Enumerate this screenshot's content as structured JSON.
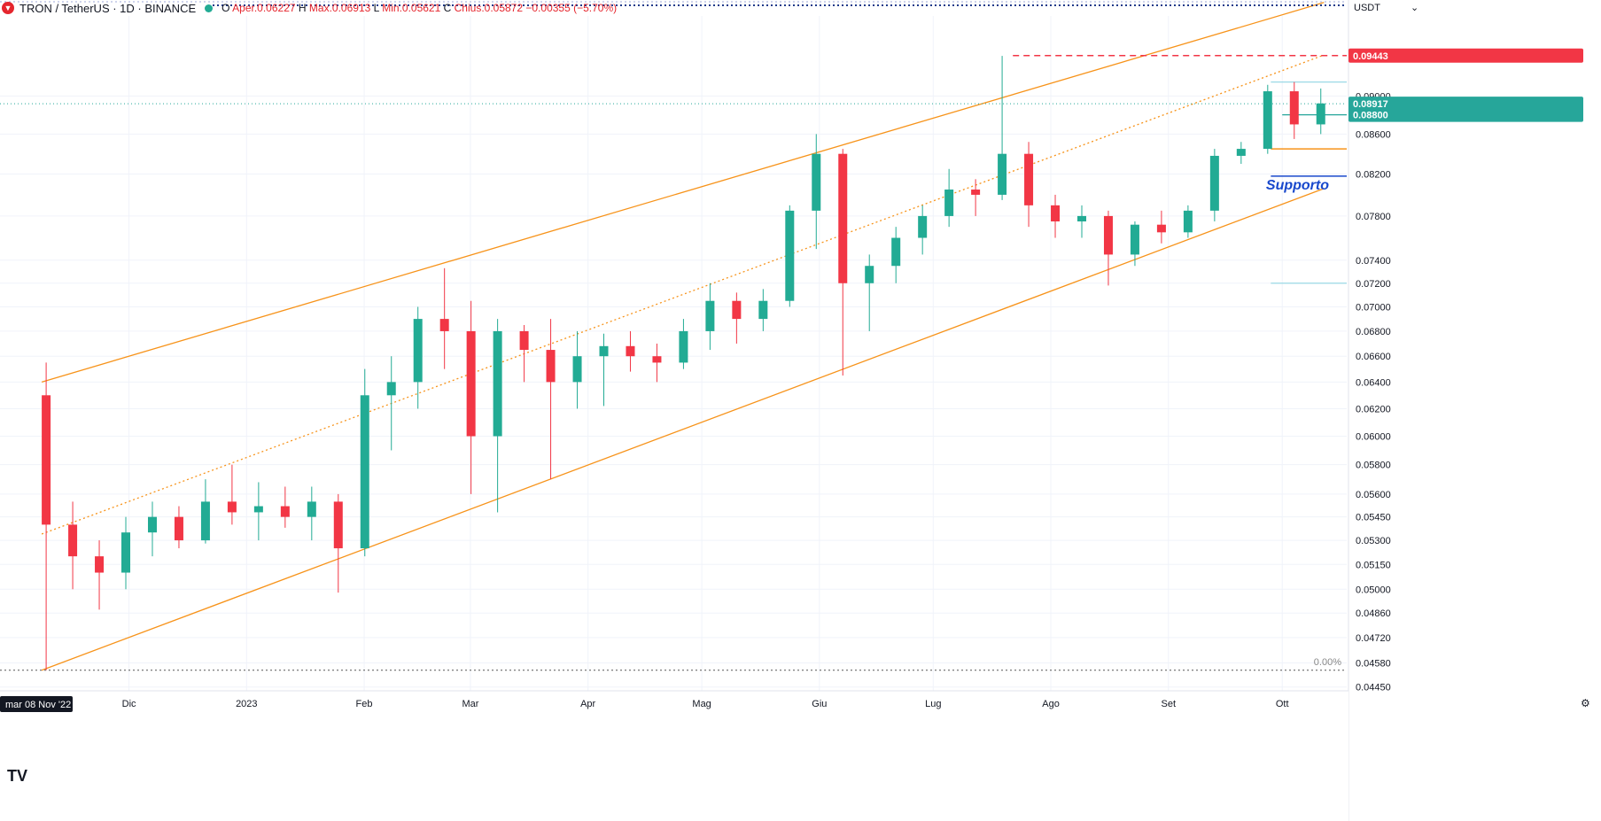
{
  "header": {
    "symbol": "TRON / TetherUS · 1D · BINANCE",
    "ohlc_label_o": "O",
    "open": "Aper.0.06227",
    "ohlc_label_h": "H",
    "high": "Max.0.06913",
    "ohlc_label_l": "L",
    "low": "Min.0.05621",
    "ohlc_label_c": "C",
    "close": "Chius.0.05872",
    "change": "−0.00355 (−5.70%)"
  },
  "currency": "USDT",
  "date_badge": "mar 08 Nov '22",
  "logo_text": "TV",
  "annotation": "Supporto",
  "fib_label": "0.00%",
  "colors": {
    "up": "#22ab94",
    "down": "#f23645",
    "channel": "#f7931a",
    "support": "#1848cc",
    "resistance": "#f23645",
    "price_line": "#26a69a"
  },
  "chart_data": {
    "type": "candlestick",
    "title": "",
    "xlabel": "",
    "ylabel": "",
    "x_ticks": [
      "Dic",
      "2023",
      "Feb",
      "Mar",
      "Apr",
      "Mag",
      "Giu",
      "Lug",
      "Ago",
      "Set",
      "Ott"
    ],
    "y_ticks": [
      "0.09000",
      "0.08600",
      "0.08200",
      "0.07800",
      "0.07400",
      "0.07200",
      "0.07000",
      "0.06800",
      "0.06600",
      "0.06400",
      "0.06200",
      "0.06000",
      "0.05800",
      "0.05600",
      "0.05450",
      "0.05300",
      "0.05150",
      "0.05000",
      "0.04860",
      "0.04720",
      "0.04580",
      "0.04450"
    ],
    "y_scale": "log",
    "ylim": [
      0.0443,
      0.099
    ],
    "price_labels": {
      "high_mark": "0.09443",
      "last_price": "0.08917",
      "level": "0.08800"
    },
    "levels": {
      "resistance": 0.09443,
      "last_price": 0.08917,
      "level": 0.088,
      "orange_level": 0.0845,
      "support": 0.0818,
      "low_mark": 0.0454
    },
    "channel": {
      "start": "2022-11-08",
      "end": "2023-10-12",
      "upper": [
        0.064,
        0.1006
      ],
      "middle": [
        0.0534,
        0.0945
      ],
      "lower": [
        0.0454,
        0.0806
      ]
    },
    "candles": [
      [
        "2022-11-08",
        0.063,
        0.0655,
        0.0454,
        0.054
      ],
      [
        "2022-11-15",
        0.054,
        0.0555,
        0.05,
        0.052
      ],
      [
        "2022-11-22",
        0.052,
        0.053,
        0.0488,
        0.051
      ],
      [
        "2022-11-29",
        0.051,
        0.0545,
        0.05,
        0.0535
      ],
      [
        "2022-12-06",
        0.0535,
        0.0555,
        0.052,
        0.0545
      ],
      [
        "2022-12-13",
        0.0545,
        0.0552,
        0.0525,
        0.053
      ],
      [
        "2022-12-20",
        0.053,
        0.057,
        0.0528,
        0.0555
      ],
      [
        "2022-12-27",
        0.0555,
        0.058,
        0.054,
        0.0548
      ],
      [
        "2023-01-03",
        0.0548,
        0.0568,
        0.053,
        0.0552
      ],
      [
        "2023-01-10",
        0.0552,
        0.0565,
        0.0538,
        0.0545
      ],
      [
        "2023-01-17",
        0.0545,
        0.0565,
        0.053,
        0.0555
      ],
      [
        "2023-01-24",
        0.0555,
        0.056,
        0.0498,
        0.0525
      ],
      [
        "2023-01-31",
        0.0525,
        0.065,
        0.052,
        0.063
      ],
      [
        "2023-02-07",
        0.063,
        0.066,
        0.059,
        0.064
      ],
      [
        "2023-02-14",
        0.064,
        0.07,
        0.062,
        0.069
      ],
      [
        "2023-02-21",
        0.069,
        0.0733,
        0.065,
        0.068
      ],
      [
        "2023-02-28",
        0.068,
        0.0705,
        0.056,
        0.06
      ],
      [
        "2023-03-07",
        0.06,
        0.069,
        0.0548,
        0.068
      ],
      [
        "2023-03-14",
        0.068,
        0.0685,
        0.064,
        0.0665
      ],
      [
        "2023-03-21",
        0.0665,
        0.069,
        0.057,
        0.064
      ],
      [
        "2023-03-28",
        0.064,
        0.068,
        0.062,
        0.066
      ],
      [
        "2023-04-04",
        0.066,
        0.0678,
        0.0622,
        0.0668
      ],
      [
        "2023-04-11",
        0.0668,
        0.068,
        0.0648,
        0.066
      ],
      [
        "2023-04-18",
        0.066,
        0.067,
        0.064,
        0.0655
      ],
      [
        "2023-04-25",
        0.0655,
        0.069,
        0.065,
        0.068
      ],
      [
        "2023-05-02",
        0.068,
        0.072,
        0.0665,
        0.0705
      ],
      [
        "2023-05-09",
        0.0705,
        0.0712,
        0.067,
        0.069
      ],
      [
        "2023-05-16",
        0.069,
        0.0715,
        0.068,
        0.0705
      ],
      [
        "2023-05-23",
        0.0705,
        0.079,
        0.07,
        0.0785
      ],
      [
        "2023-05-30",
        0.0785,
        0.086,
        0.075,
        0.084
      ],
      [
        "2023-06-06",
        0.084,
        0.0845,
        0.0645,
        0.072
      ],
      [
        "2023-06-13",
        0.072,
        0.0745,
        0.068,
        0.0735
      ],
      [
        "2023-06-20",
        0.0735,
        0.077,
        0.072,
        0.076
      ],
      [
        "2023-06-27",
        0.076,
        0.079,
        0.0745,
        0.078
      ],
      [
        "2023-07-04",
        0.078,
        0.0825,
        0.077,
        0.0805
      ],
      [
        "2023-07-11",
        0.0805,
        0.0815,
        0.078,
        0.08
      ],
      [
        "2023-07-18",
        0.08,
        0.0944,
        0.0795,
        0.084
      ],
      [
        "2023-07-25",
        0.084,
        0.0852,
        0.077,
        0.079
      ],
      [
        "2023-08-01",
        0.079,
        0.08,
        0.076,
        0.0775
      ],
      [
        "2023-08-08",
        0.0775,
        0.079,
        0.076,
        0.078
      ],
      [
        "2023-08-15",
        0.078,
        0.0785,
        0.0718,
        0.0745
      ],
      [
        "2023-08-22",
        0.0745,
        0.0775,
        0.0735,
        0.0772
      ],
      [
        "2023-08-29",
        0.0772,
        0.0785,
        0.0755,
        0.0765
      ],
      [
        "2023-09-05",
        0.0765,
        0.079,
        0.076,
        0.0785
      ],
      [
        "2023-09-12",
        0.0785,
        0.0845,
        0.0775,
        0.0838
      ],
      [
        "2023-09-19",
        0.0838,
        0.0852,
        0.083,
        0.0845
      ],
      [
        "2023-09-26",
        0.0845,
        0.0912,
        0.084,
        0.0905
      ],
      [
        "2023-10-03",
        0.0905,
        0.0915,
        0.0855,
        0.087
      ],
      [
        "2023-10-10",
        0.087,
        0.0908,
        0.086,
        0.0892
      ]
    ]
  }
}
